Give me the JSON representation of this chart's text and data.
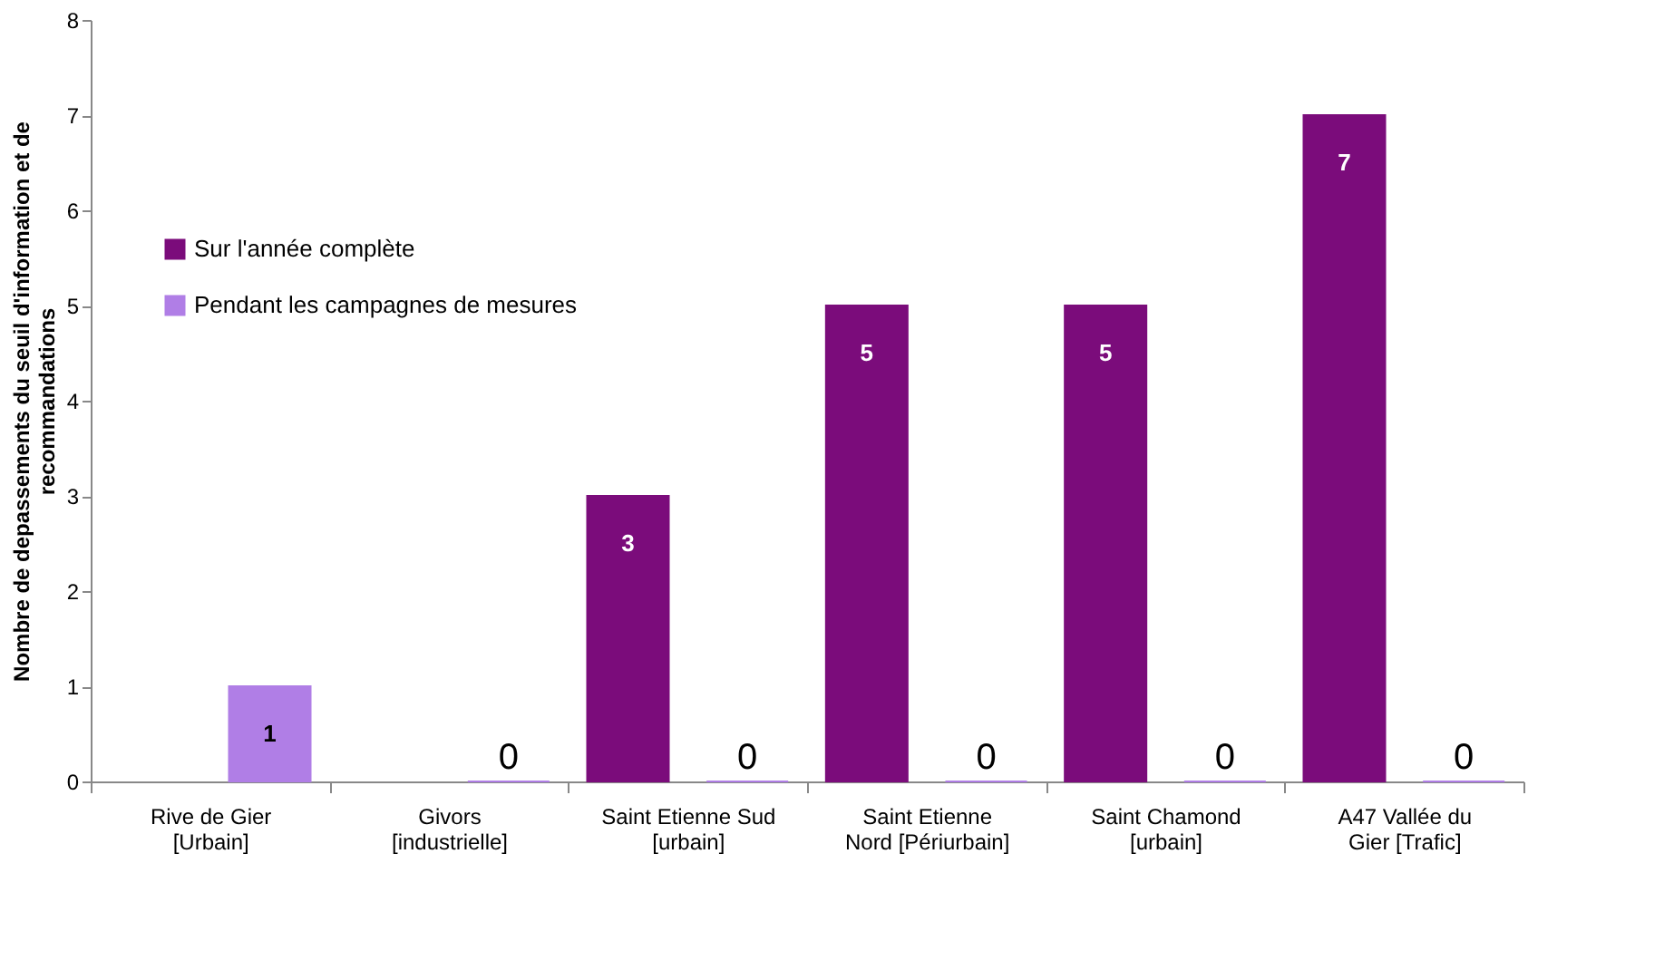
{
  "chart_data": {
    "type": "bar",
    "ylabel": "Nombre de depassements du seuil d'information et de recommandations",
    "categories": [
      "Rive de Gier [Urbain]",
      "Givors [industrielle]",
      "Saint Etienne Sud [urbain]",
      "Saint Etienne Nord [Périurbain]",
      "Saint Chamond [urbain]",
      "A47 Vallée du Gier [Trafic]"
    ],
    "series": [
      {
        "name": "Sur l'année complète",
        "color": "#7b0c7b",
        "values": [
          null,
          null,
          3,
          5,
          5,
          7
        ]
      },
      {
        "name": "Pendant les campagnes de mesures",
        "color": "#b07ee6",
        "values": [
          1,
          0,
          0,
          0,
          0,
          0
        ]
      }
    ],
    "ylim": [
      0,
      8
    ],
    "yticks": [
      0,
      1,
      2,
      3,
      4,
      5,
      6,
      7,
      8
    ],
    "grid": false,
    "legend": "left",
    "data_labels": true
  }
}
